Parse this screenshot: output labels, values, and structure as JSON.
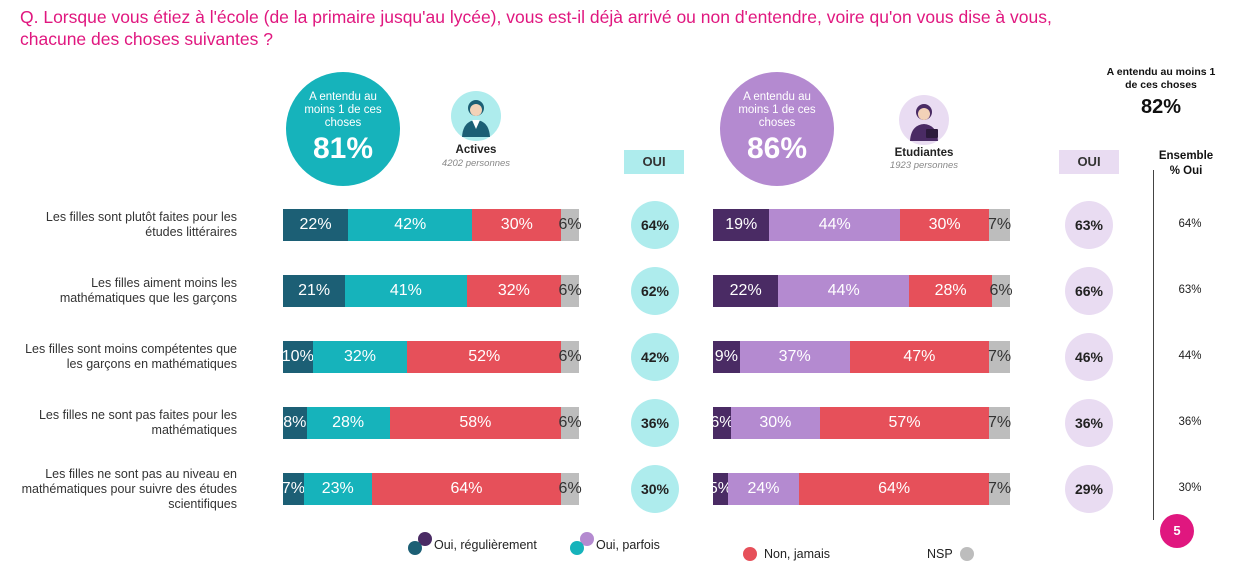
{
  "question": "Q. Lorsque vous étiez à l'école (de la primaire jusqu'au lycée), vous est-il déjà arrivé ou non d'entendre, voire qu'on vous dise à vous, chacune des choses suivantes ?",
  "colors": {
    "magenta": "#e0177f",
    "actives_dark": "#1c5f75",
    "actives_light": "#16b3bb",
    "etud_dark": "#4a2b64",
    "etud_light": "#b48ad0",
    "red": "#e6505a",
    "grey": "#bdbdbd",
    "actives_oui_circle": "#aeeced",
    "etud_oui_circle": "#e9dcf2"
  },
  "groups": {
    "actives": {
      "circle_label": "A entendu au moins 1 de ces choses",
      "circle_pct": "81%",
      "name": "Actives",
      "count": "4202 personnes",
      "icon": "woman-professional-icon",
      "oui_header": "OUI"
    },
    "etudiantes": {
      "circle_label": "A entendu au moins 1 de ces choses",
      "circle_pct": "86%",
      "name": "Etudiantes",
      "count": "1923 personnes",
      "icon": "woman-student-icon",
      "oui_header": "OUI"
    }
  },
  "ensemble": {
    "top_label": "A entendu au moins 1 de ces choses",
    "top_pct": "82%",
    "header": "Ensemble % Oui"
  },
  "page_number": "5",
  "chart_data": {
    "type": "bar",
    "orientation": "horizontal",
    "stacked": true,
    "normalized": true,
    "categories": [
      "Les filles sont plutôt faites pour les études littéraires",
      "Les filles aiment moins les mathématiques que les garçons",
      "Les filles sont moins compétentes que les garçons en mathématiques",
      "Les filles ne sont pas faites pour les mathématiques",
      "Les filles ne sont pas au niveau en mathématiques pour suivre des études scientifiques"
    ],
    "legend": [
      "Oui, régulièrement",
      "Oui, parfois",
      "Non, jamais",
      "NSP"
    ],
    "actives": {
      "series": [
        {
          "name": "Oui, régulièrement",
          "values": [
            22,
            21,
            10,
            8,
            7
          ]
        },
        {
          "name": "Oui, parfois",
          "values": [
            42,
            41,
            32,
            28,
            23
          ]
        },
        {
          "name": "Non, jamais",
          "values": [
            30,
            32,
            52,
            58,
            64
          ]
        },
        {
          "name": "NSP",
          "values": [
            6,
            6,
            6,
            6,
            6
          ]
        }
      ],
      "oui": [
        "64%",
        "62%",
        "42%",
        "36%",
        "30%"
      ]
    },
    "etudiantes": {
      "series": [
        {
          "name": "Oui, régulièrement",
          "values": [
            19,
            22,
            9,
            6,
            5
          ]
        },
        {
          "name": "Oui, parfois",
          "values": [
            44,
            44,
            37,
            30,
            24
          ]
        },
        {
          "name": "Non, jamais",
          "values": [
            30,
            28,
            47,
            57,
            64
          ]
        },
        {
          "name": "NSP",
          "values": [
            7,
            6,
            7,
            7,
            7
          ]
        }
      ],
      "oui": [
        "63%",
        "66%",
        "46%",
        "36%",
        "29%"
      ]
    },
    "ensemble_oui": [
      "64%",
      "63%",
      "44%",
      "36%",
      "30%"
    ]
  }
}
